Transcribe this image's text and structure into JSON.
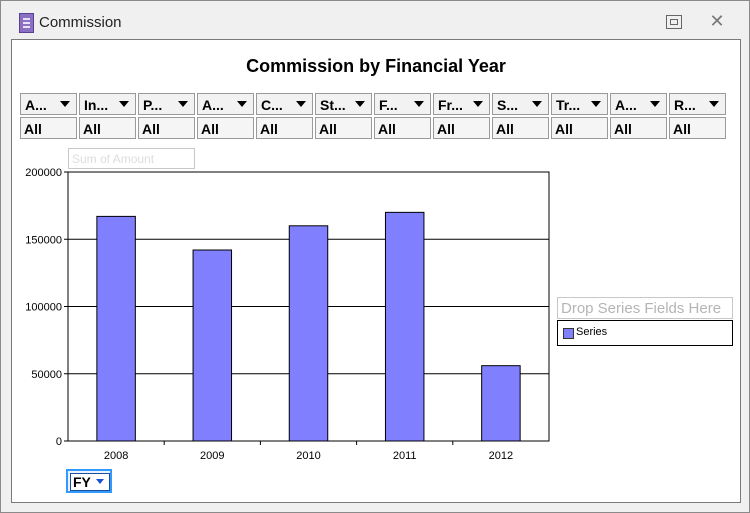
{
  "window": {
    "title": "Commission"
  },
  "report": {
    "title": "Commission by Financial Year"
  },
  "filters": [
    {
      "name": "A...",
      "value": "All"
    },
    {
      "name": "In...",
      "value": "All"
    },
    {
      "name": "P...",
      "value": "All"
    },
    {
      "name": "A...",
      "value": "All"
    },
    {
      "name": "C...",
      "value": "All"
    },
    {
      "name": "St...",
      "value": "All"
    },
    {
      "name": "F...",
      "value": "All"
    },
    {
      "name": "Fr...",
      "value": "All"
    },
    {
      "name": "S...",
      "value": "All"
    },
    {
      "name": "Tr...",
      "value": "All"
    },
    {
      "name": "A...",
      "value": "All"
    },
    {
      "name": "R...",
      "value": "All"
    }
  ],
  "data_drop": {
    "label": "Sum of Amount"
  },
  "series_drop": {
    "label": "Drop Series Fields Here"
  },
  "legend": {
    "items": [
      {
        "label": "Series",
        "color": "#8080ff"
      }
    ]
  },
  "axis_field": {
    "label": "FY"
  },
  "chart_data": {
    "type": "bar",
    "categories": [
      "2008",
      "2009",
      "2010",
      "2011",
      "2012"
    ],
    "values": [
      167000,
      142000,
      160000,
      170000,
      56000
    ],
    "ylim": [
      0,
      200000
    ],
    "yticks": [
      0,
      50000,
      100000,
      150000,
      200000
    ],
    "ytick_labels": [
      "0",
      "50000",
      "100000",
      "150000",
      "200000"
    ],
    "grid": true,
    "legend_position": "right",
    "bar_color": "#8080ff"
  }
}
